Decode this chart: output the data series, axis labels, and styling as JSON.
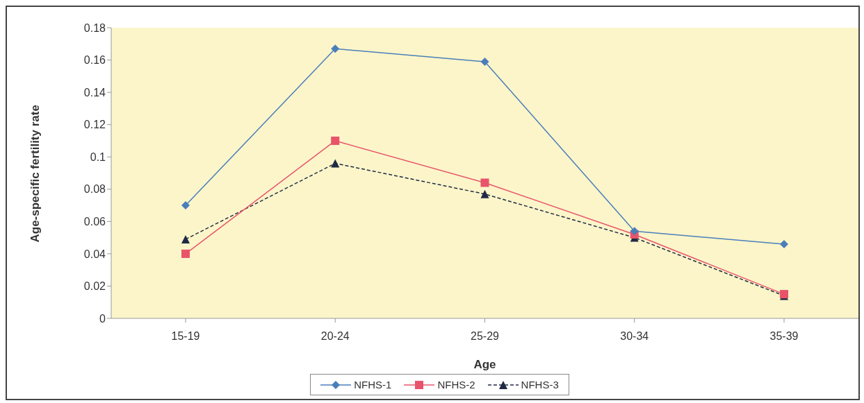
{
  "chart_data": {
    "type": "line",
    "xlabel": "Age",
    "ylabel": "Age-specific fertility rate",
    "categories": [
      "15-19",
      "20-24",
      "25-29",
      "30-34",
      "35-39"
    ],
    "ylim": [
      0,
      0.18
    ],
    "yticks": [
      0,
      0.02,
      0.04,
      0.06,
      0.08,
      0.1,
      0.12,
      0.14,
      0.16,
      0.18
    ],
    "grid": false,
    "legend": "bottom",
    "series": [
      {
        "name": "NFHS-1",
        "color": "#4a7ebb",
        "marker": "diamond",
        "line_style": "solid",
        "values": [
          0.07,
          0.167,
          0.159,
          0.054,
          0.046
        ]
      },
      {
        "name": "NFHS-2",
        "color": "#e8546a",
        "marker": "square",
        "line_style": "solid",
        "values": [
          0.04,
          0.11,
          0.084,
          0.052,
          0.015
        ]
      },
      {
        "name": "NFHS-3",
        "color": "#1f2a44",
        "marker": "triangle",
        "line_style": "dashed",
        "values": [
          0.049,
          0.096,
          0.077,
          0.05,
          0.014
        ]
      }
    ]
  }
}
